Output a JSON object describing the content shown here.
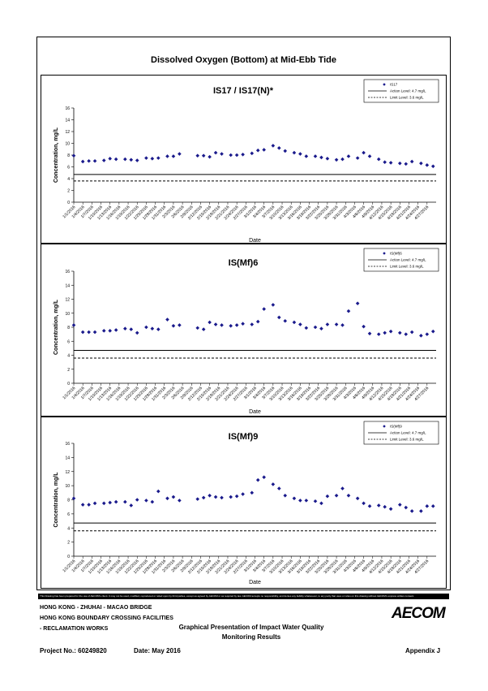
{
  "page": {
    "main_title": "Dissolved Oxygen (Bottom) at Mid-Ebb Tide",
    "disclaimer": "This Drawing has been prepared for the use of AECOM's client. It may not be used, modified, reproduced or relied upon by third parties, except as agreed by AECOM or as required by law. AECOM accepts no responsibility, and denies any liability whatsoever, to any party that uses or relies on this drawing without AECOM's express written consent.",
    "footer": {
      "line1": "HONG KONG - ZHUHAI - MACAO BRIDGE",
      "line2": "HONG KONG BOUNDARY CROSSING FACILITIES",
      "line3": "- RECLAMATION WORKS",
      "center_line1": "Graphical Presentation of Impact Water Quality",
      "center_line2": "Monitoring Results",
      "project": "Project No.: 60249820",
      "date": "Date: May 2016",
      "appendix": "Appendix J",
      "logo": "AECOM"
    }
  },
  "chart_data": [
    {
      "type": "scatter",
      "title": "IS17 / IS17(N)*",
      "xlabel": "Date",
      "ylabel": "Concentration, mg/L",
      "ylim": [
        0,
        16
      ],
      "yticks": [
        0,
        2,
        4,
        6,
        8,
        10,
        12,
        14,
        16
      ],
      "grid": false,
      "legend_position": "top-right",
      "x_tick_labels": [
        "1/1/2016",
        "1/4/2016",
        "1/7/2016",
        "1/10/2016",
        "1/13/2016",
        "1/16/2016",
        "1/19/2016",
        "1/22/2016",
        "1/25/2016",
        "1/28/2016",
        "1/31/2016",
        "2/3/2016",
        "2/6/2016",
        "2/9/2016",
        "2/12/2016",
        "2/15/2016",
        "2/18/2016",
        "2/21/2016",
        "2/24/2016",
        "2/27/2016",
        "3/1/2016",
        "3/4/2016",
        "3/7/2016",
        "3/10/2016",
        "3/13/2016",
        "3/16/2016",
        "3/19/2016",
        "3/22/2016",
        "3/25/2016",
        "3/28/2016",
        "3/31/2016",
        "4/3/2016",
        "4/6/2016",
        "4/9/2016",
        "4/12/2016",
        "4/15/2016",
        "4/18/2016",
        "4/21/2016",
        "4/24/2016",
        "4/27/2016"
      ],
      "x_range": [
        "1/1/2016",
        "4/30/2016"
      ],
      "series": [
        {
          "name": "IS17",
          "marker": "diamond",
          "color": "#1a1a8c",
          "x": [
            "1/1/2016",
            "1/4/2016",
            "1/6/2016",
            "1/8/2016",
            "1/11/2016",
            "1/13/2016",
            "1/15/2016",
            "1/18/2016",
            "1/20/2016",
            "1/22/2016",
            "1/25/2016",
            "1/27/2016",
            "1/29/2016",
            "2/1/2016",
            "2/3/2016",
            "2/5/2016",
            "2/11/2016",
            "2/13/2016",
            "2/15/2016",
            "2/17/2016",
            "2/19/2016",
            "2/22/2016",
            "2/24/2016",
            "2/26/2016",
            "2/29/2016",
            "3/2/2016",
            "3/4/2016",
            "3/7/2016",
            "3/9/2016",
            "3/11/2016",
            "3/14/2016",
            "3/16/2016",
            "3/18/2016",
            "3/21/2016",
            "3/23/2016",
            "3/25/2016",
            "3/28/2016",
            "3/30/2016",
            "4/1/2016",
            "4/4/2016",
            "4/6/2016",
            "4/8/2016",
            "4/11/2016",
            "4/13/2016",
            "4/15/2016",
            "4/18/2016",
            "4/20/2016",
            "4/22/2016",
            "4/25/2016",
            "4/27/2016",
            "4/29/2016"
          ],
          "y": [
            7.9,
            6.9,
            7.0,
            7.0,
            7.1,
            7.4,
            7.3,
            7.3,
            7.2,
            7.1,
            7.5,
            7.4,
            7.5,
            7.8,
            7.8,
            8.2,
            7.9,
            7.9,
            7.7,
            8.4,
            8.2,
            8.0,
            8.0,
            8.1,
            8.3,
            8.8,
            8.9,
            9.6,
            9.2,
            8.7,
            8.4,
            8.2,
            7.8,
            7.8,
            7.6,
            7.4,
            7.2,
            7.3,
            7.8,
            7.5,
            8.4,
            7.8,
            7.3,
            6.8,
            6.7,
            6.6,
            6.5,
            6.9,
            6.6,
            6.3,
            6.1
          ]
        }
      ],
      "reference_lines": [
        {
          "name": "Action Level: 4.7 mg/L",
          "value": 4.7,
          "style": "solid"
        },
        {
          "name": "Limit Level: 3.6 mg/L",
          "value": 3.6,
          "style": "dashed"
        }
      ]
    },
    {
      "type": "scatter",
      "title": "IS(Mf)6",
      "xlabel": "Date",
      "ylabel": "Concentration, mg/L",
      "ylim": [
        0,
        16
      ],
      "yticks": [
        0,
        2,
        4,
        6,
        8,
        10,
        12,
        14,
        16
      ],
      "grid": false,
      "legend_position": "top-right",
      "x_tick_labels": [
        "1/1/2016",
        "1/4/2016",
        "1/7/2016",
        "1/10/2016",
        "1/13/2016",
        "1/16/2016",
        "1/19/2016",
        "1/22/2016",
        "1/25/2016",
        "1/28/2016",
        "1/31/2016",
        "2/3/2016",
        "2/6/2016",
        "2/9/2016",
        "2/12/2016",
        "2/15/2016",
        "2/18/2016",
        "2/21/2016",
        "2/24/2016",
        "2/27/2016",
        "3/1/2016",
        "3/4/2016",
        "3/7/2016",
        "3/10/2016",
        "3/13/2016",
        "3/16/2016",
        "3/19/2016",
        "3/22/2016",
        "3/25/2016",
        "3/28/2016",
        "3/31/2016",
        "4/3/2016",
        "4/6/2016",
        "4/9/2016",
        "4/12/2016",
        "4/15/2016",
        "4/18/2016",
        "4/21/2016",
        "4/24/2016",
        "4/27/2016"
      ],
      "x_range": [
        "1/1/2016",
        "4/30/2016"
      ],
      "series": [
        {
          "name": "IS(Mf)6",
          "marker": "diamond",
          "color": "#1a1a8c",
          "x": [
            "1/1/2016",
            "1/4/2016",
            "1/6/2016",
            "1/8/2016",
            "1/11/2016",
            "1/13/2016",
            "1/15/2016",
            "1/18/2016",
            "1/20/2016",
            "1/22/2016",
            "1/25/2016",
            "1/27/2016",
            "1/29/2016",
            "2/1/2016",
            "2/3/2016",
            "2/5/2016",
            "2/11/2016",
            "2/13/2016",
            "2/15/2016",
            "2/17/2016",
            "2/19/2016",
            "2/22/2016",
            "2/24/2016",
            "2/26/2016",
            "2/29/2016",
            "3/2/2016",
            "3/4/2016",
            "3/7/2016",
            "3/9/2016",
            "3/11/2016",
            "3/14/2016",
            "3/16/2016",
            "3/18/2016",
            "3/21/2016",
            "3/23/2016",
            "3/25/2016",
            "3/28/2016",
            "3/30/2016",
            "4/1/2016",
            "4/4/2016",
            "4/6/2016",
            "4/8/2016",
            "4/11/2016",
            "4/13/2016",
            "4/15/2016",
            "4/18/2016",
            "4/20/2016",
            "4/22/2016",
            "4/25/2016",
            "4/27/2016",
            "4/29/2016"
          ],
          "y": [
            8.3,
            7.3,
            7.3,
            7.3,
            7.5,
            7.5,
            7.6,
            7.8,
            7.7,
            7.2,
            8.0,
            7.8,
            7.7,
            9.1,
            8.2,
            8.3,
            7.9,
            7.7,
            8.7,
            8.4,
            8.3,
            8.2,
            8.3,
            8.5,
            8.4,
            8.8,
            10.6,
            11.2,
            9.4,
            8.9,
            8.7,
            8.4,
            7.9,
            8.0,
            7.8,
            8.4,
            8.4,
            8.3,
            10.3,
            11.4,
            8.1,
            7.1,
            7.0,
            7.2,
            7.4,
            7.2,
            7.0,
            7.3,
            6.8,
            7.0,
            7.4
          ]
        }
      ],
      "reference_lines": [
        {
          "name": "Action Level: 4.7 mg/L",
          "value": 4.7,
          "style": "solid"
        },
        {
          "name": "Limit Level: 3.6 mg/L",
          "value": 3.6,
          "style": "dashed"
        }
      ]
    },
    {
      "type": "scatter",
      "title": "IS(Mf)9",
      "xlabel": "Date",
      "ylabel": "Concentration, mg/L",
      "ylim": [
        0,
        16
      ],
      "yticks": [
        0,
        2,
        4,
        6,
        8,
        10,
        12,
        14,
        16
      ],
      "grid": false,
      "legend_position": "top-right",
      "x_tick_labels": [
        "1/1/2016",
        "1/4/2016",
        "1/7/2016",
        "1/10/2016",
        "1/13/2016",
        "1/16/2016",
        "1/19/2016",
        "1/22/2016",
        "1/25/2016",
        "1/28/2016",
        "1/31/2016",
        "2/3/2016",
        "2/6/2016",
        "2/9/2016",
        "2/12/2016",
        "2/15/2016",
        "2/18/2016",
        "2/21/2016",
        "2/24/2016",
        "2/27/2016",
        "3/1/2016",
        "3/4/2016",
        "3/7/2016",
        "3/10/2016",
        "3/13/2016",
        "3/16/2016",
        "3/19/2016",
        "3/22/2016",
        "3/25/2016",
        "3/28/2016",
        "3/31/2016",
        "4/3/2016",
        "4/6/2016",
        "4/9/2016",
        "4/12/2016",
        "4/15/2016",
        "4/18/2016",
        "4/21/2016",
        "4/24/2016",
        "4/27/2016"
      ],
      "x_range": [
        "1/1/2016",
        "4/30/2016"
      ],
      "series": [
        {
          "name": "IS(Mf)9",
          "marker": "diamond",
          "color": "#1a1a8c",
          "x": [
            "1/1/2016",
            "1/4/2016",
            "1/6/2016",
            "1/8/2016",
            "1/11/2016",
            "1/13/2016",
            "1/15/2016",
            "1/18/2016",
            "1/20/2016",
            "1/22/2016",
            "1/25/2016",
            "1/27/2016",
            "1/29/2016",
            "2/1/2016",
            "2/3/2016",
            "2/5/2016",
            "2/11/2016",
            "2/13/2016",
            "2/15/2016",
            "2/17/2016",
            "2/19/2016",
            "2/22/2016",
            "2/24/2016",
            "2/26/2016",
            "2/29/2016",
            "3/2/2016",
            "3/4/2016",
            "3/7/2016",
            "3/9/2016",
            "3/11/2016",
            "3/14/2016",
            "3/16/2016",
            "3/18/2016",
            "3/21/2016",
            "3/23/2016",
            "3/25/2016",
            "3/28/2016",
            "3/30/2016",
            "4/1/2016",
            "4/4/2016",
            "4/6/2016",
            "4/8/2016",
            "4/11/2016",
            "4/13/2016",
            "4/15/2016",
            "4/18/2016",
            "4/20/2016",
            "4/22/2016",
            "4/25/2016",
            "4/27/2016",
            "4/29/2016"
          ],
          "y": [
            8.2,
            7.3,
            7.3,
            7.5,
            7.5,
            7.6,
            7.7,
            7.7,
            7.2,
            8.0,
            7.9,
            7.7,
            9.2,
            8.2,
            8.4,
            7.9,
            8.1,
            8.3,
            8.6,
            8.4,
            8.3,
            8.4,
            8.5,
            8.8,
            9.0,
            10.8,
            11.2,
            10.2,
            9.6,
            8.6,
            8.2,
            7.9,
            7.9,
            7.8,
            7.5,
            8.5,
            8.6,
            9.6,
            8.6,
            8.2,
            7.5,
            7.1,
            7.2,
            7.0,
            6.7,
            7.3,
            6.9,
            6.4,
            6.4,
            7.1,
            7.1
          ]
        }
      ],
      "reference_lines": [
        {
          "name": "Action Level: 4.7 mg/L",
          "value": 4.7,
          "style": "solid"
        },
        {
          "name": "Limit Level: 3.6 mg/L",
          "value": 3.6,
          "style": "dashed"
        }
      ]
    }
  ]
}
